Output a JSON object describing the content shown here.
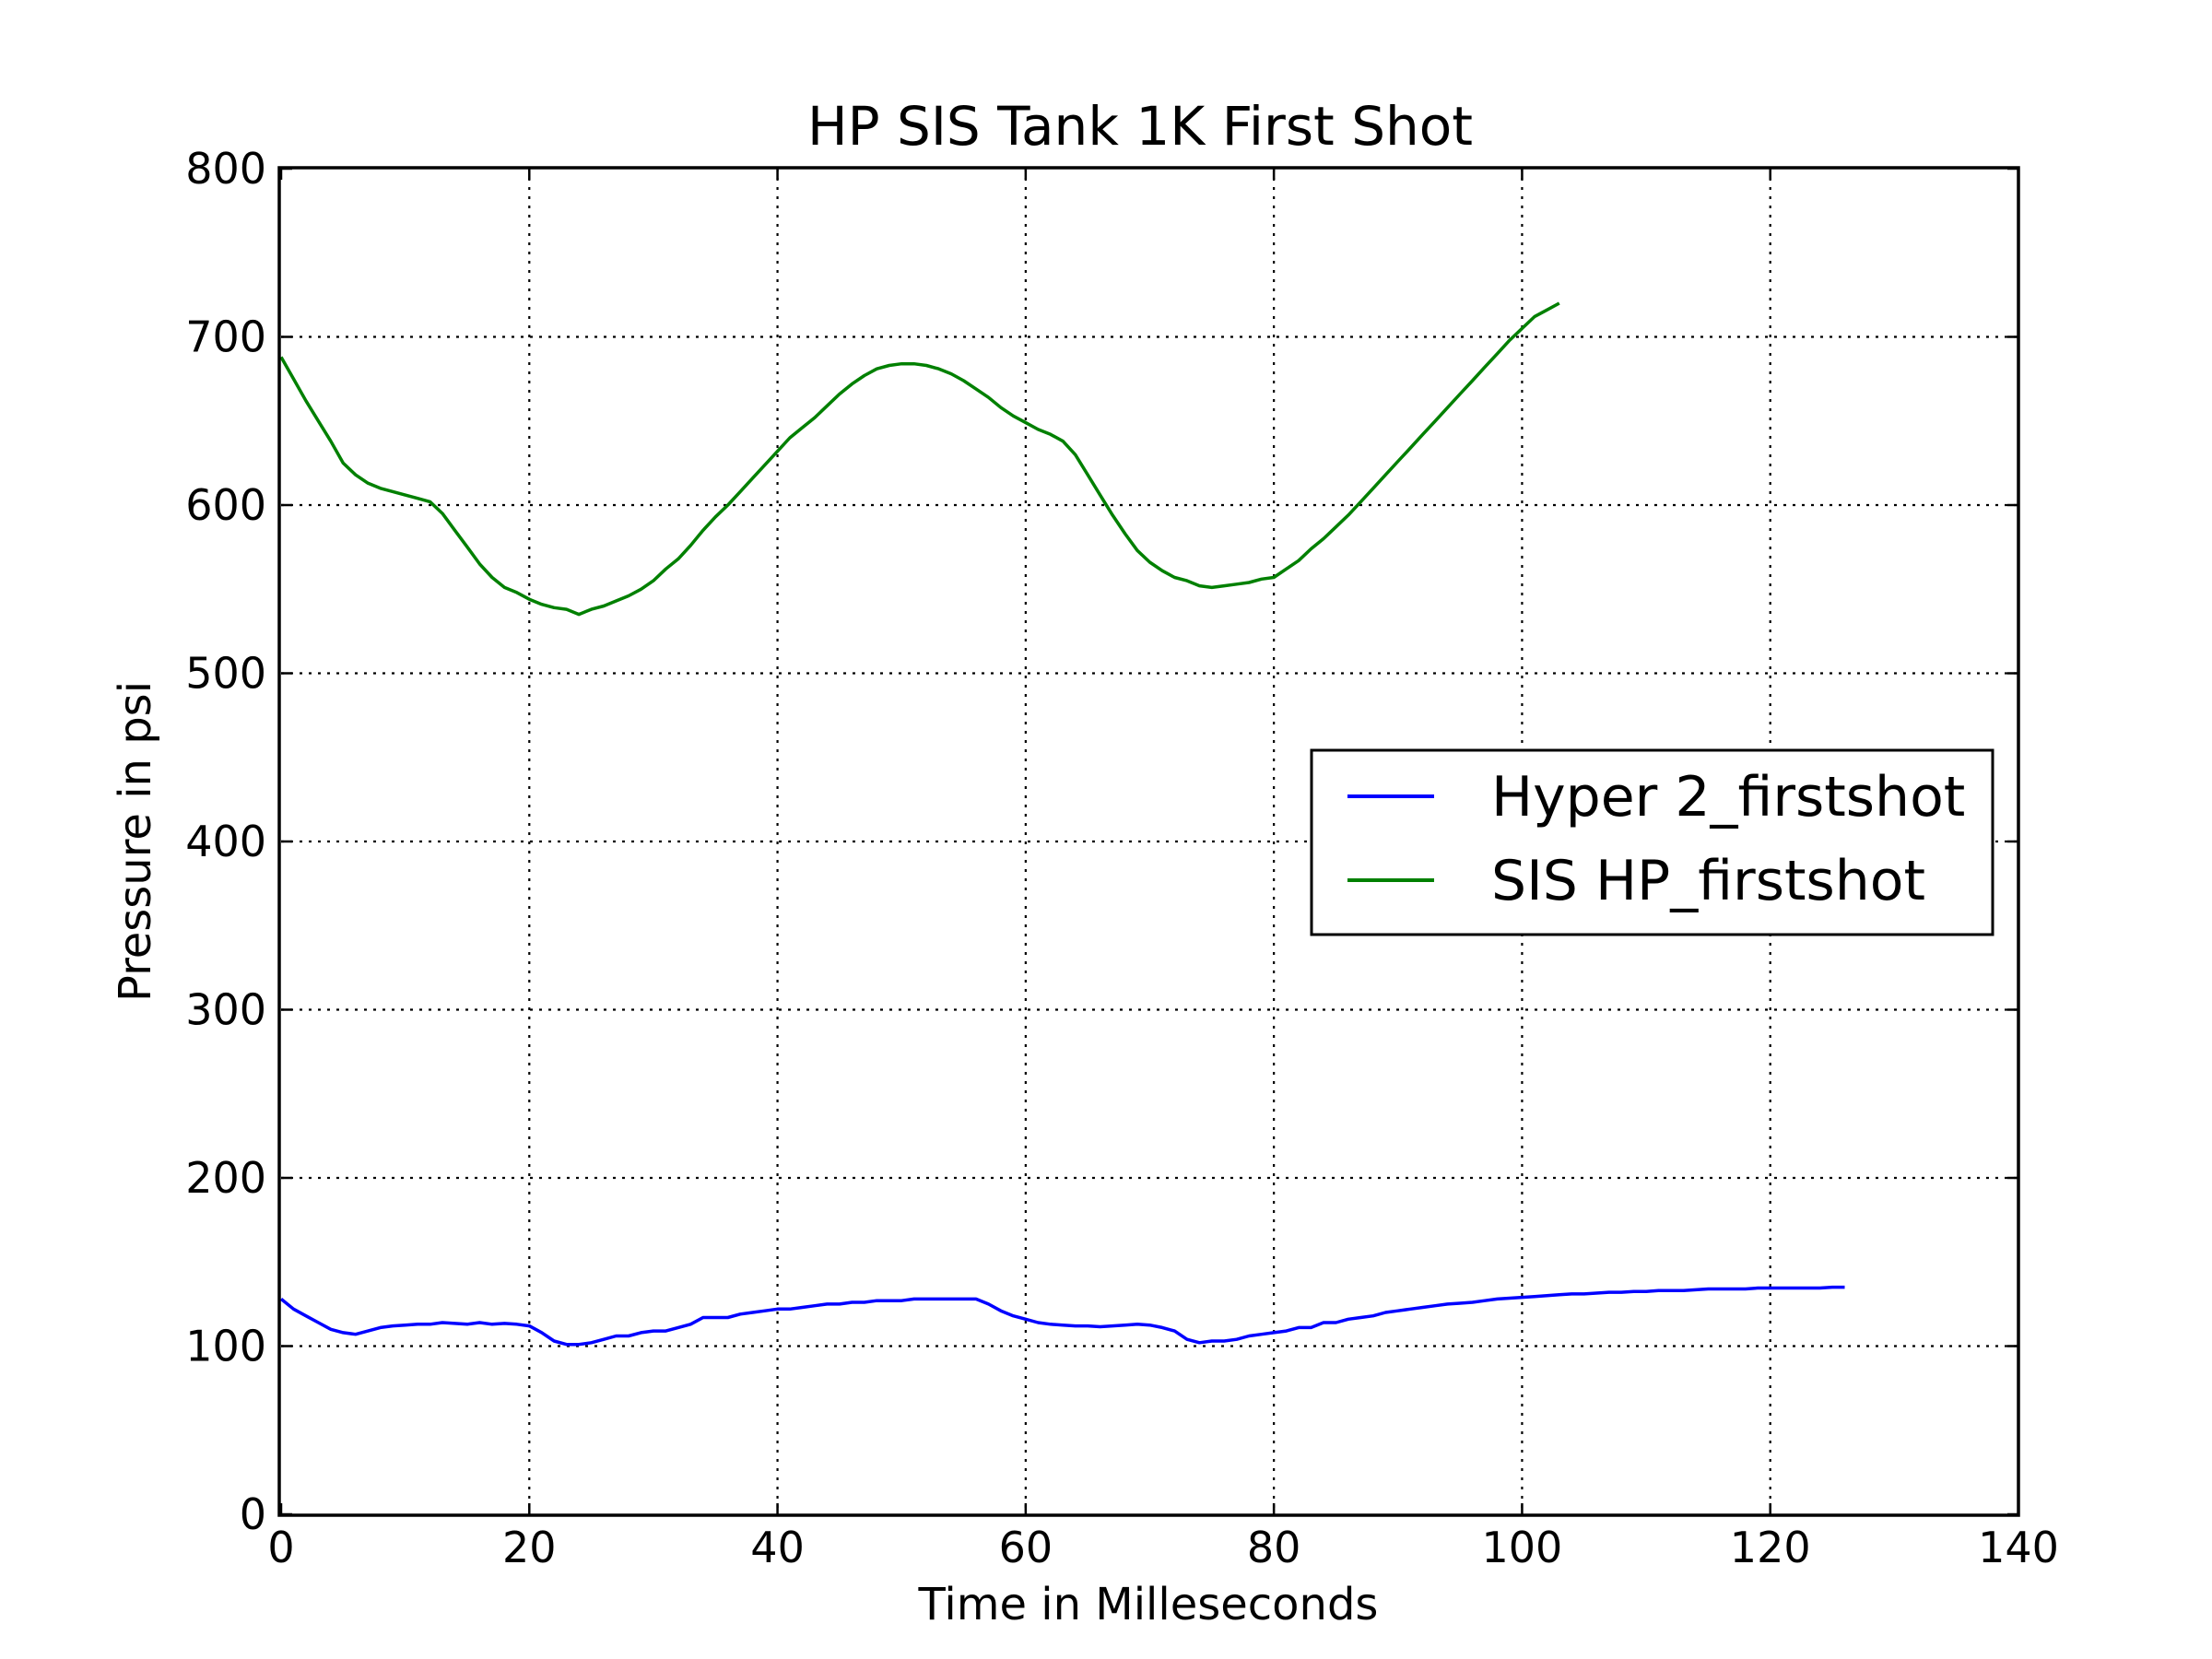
{
  "chart_data": {
    "type": "line",
    "title": "HP SIS Tank 1K First Shot",
    "xlabel": "Time in Milleseconds",
    "ylabel": "Pressure in psi",
    "xlim": [
      0,
      140
    ],
    "ylim": [
      0,
      800
    ],
    "xticks": [
      "0",
      "20",
      "40",
      "60",
      "80",
      "100",
      "120",
      "140"
    ],
    "yticks": [
      "0",
      "100",
      "200",
      "300",
      "400",
      "500",
      "600",
      "700",
      "800"
    ],
    "grid": true,
    "legend_position": "center-right",
    "series": [
      {
        "name": "Hyper 2_firstshot",
        "color": "#0000ff",
        "points": [
          [
            0,
            128
          ],
          [
            1,
            122
          ],
          [
            2,
            118
          ],
          [
            3,
            114
          ],
          [
            4,
            110
          ],
          [
            5,
            108
          ],
          [
            6,
            107
          ],
          [
            7,
            109
          ],
          [
            8,
            111
          ],
          [
            9,
            112
          ],
          [
            10,
            112.5
          ],
          [
            11,
            113
          ],
          [
            12,
            113
          ],
          [
            13,
            114
          ],
          [
            14,
            113.5
          ],
          [
            15,
            113
          ],
          [
            16,
            114
          ],
          [
            17,
            113
          ],
          [
            18,
            113.5
          ],
          [
            19,
            113
          ],
          [
            20,
            112
          ],
          [
            21,
            108
          ],
          [
            22,
            103
          ],
          [
            23,
            101
          ],
          [
            24,
            101
          ],
          [
            25,
            102
          ],
          [
            26,
            104
          ],
          [
            27,
            106
          ],
          [
            28,
            106
          ],
          [
            29,
            108
          ],
          [
            30,
            109
          ],
          [
            31,
            109
          ],
          [
            32,
            111
          ],
          [
            33,
            113
          ],
          [
            34,
            117
          ],
          [
            35,
            117
          ],
          [
            36,
            117
          ],
          [
            37,
            119
          ],
          [
            38,
            120
          ],
          [
            39,
            121
          ],
          [
            40,
            122
          ],
          [
            41,
            122
          ],
          [
            42,
            123
          ],
          [
            43,
            124
          ],
          [
            44,
            125
          ],
          [
            45,
            125
          ],
          [
            46,
            126
          ],
          [
            47,
            126
          ],
          [
            48,
            127
          ],
          [
            49,
            127
          ],
          [
            50,
            127
          ],
          [
            51,
            128
          ],
          [
            52,
            128
          ],
          [
            53,
            128
          ],
          [
            54,
            128
          ],
          [
            55,
            128
          ],
          [
            56,
            128
          ],
          [
            57,
            125
          ],
          [
            58,
            121
          ],
          [
            59,
            118
          ],
          [
            60,
            116
          ],
          [
            61,
            114
          ],
          [
            62,
            113
          ],
          [
            63,
            112.5
          ],
          [
            64,
            112
          ],
          [
            65,
            112
          ],
          [
            66,
            111.5
          ],
          [
            67,
            112
          ],
          [
            68,
            112.5
          ],
          [
            69,
            113
          ],
          [
            70,
            112.5
          ],
          [
            71,
            111
          ],
          [
            72,
            109
          ],
          [
            73,
            104
          ],
          [
            74,
            102
          ],
          [
            75,
            103
          ],
          [
            76,
            103
          ],
          [
            77,
            104
          ],
          [
            78,
            106
          ],
          [
            79,
            107
          ],
          [
            80,
            108
          ],
          [
            81,
            109
          ],
          [
            82,
            111
          ],
          [
            83,
            111
          ],
          [
            84,
            114
          ],
          [
            85,
            114
          ],
          [
            86,
            116
          ],
          [
            87,
            117
          ],
          [
            88,
            118
          ],
          [
            89,
            120
          ],
          [
            90,
            121
          ],
          [
            91,
            122
          ],
          [
            92,
            123
          ],
          [
            93,
            124
          ],
          [
            94,
            125
          ],
          [
            95,
            125.5
          ],
          [
            96,
            126
          ],
          [
            97,
            127
          ],
          [
            98,
            128
          ],
          [
            99,
            128.5
          ],
          [
            100,
            129
          ],
          [
            101,
            129.5
          ],
          [
            102,
            130
          ],
          [
            103,
            130.5
          ],
          [
            104,
            131
          ],
          [
            105,
            131
          ],
          [
            106,
            131.5
          ],
          [
            107,
            132
          ],
          [
            108,
            132
          ],
          [
            109,
            132.5
          ],
          [
            110,
            132.5
          ],
          [
            111,
            133
          ],
          [
            112,
            133
          ],
          [
            113,
            133
          ],
          [
            114,
            133.5
          ],
          [
            115,
            134
          ],
          [
            116,
            134
          ],
          [
            117,
            134
          ],
          [
            118,
            134
          ],
          [
            119,
            134.5
          ],
          [
            120,
            134.5
          ],
          [
            121,
            134.5
          ],
          [
            122,
            134.5
          ],
          [
            123,
            134.5
          ],
          [
            124,
            134.5
          ],
          [
            125,
            135
          ],
          [
            126,
            135
          ]
        ]
      },
      {
        "name": "SIS HP_firstshot",
        "color": "#008000",
        "points": [
          [
            0,
            688
          ],
          [
            1,
            675
          ],
          [
            2,
            662
          ],
          [
            3,
            650
          ],
          [
            4,
            638
          ],
          [
            5,
            625
          ],
          [
            6,
            618
          ],
          [
            7,
            613
          ],
          [
            8,
            610
          ],
          [
            9,
            608
          ],
          [
            10,
            606
          ],
          [
            11,
            604
          ],
          [
            12,
            602
          ],
          [
            13,
            595
          ],
          [
            14,
            585
          ],
          [
            15,
            575
          ],
          [
            16,
            565
          ],
          [
            17,
            557
          ],
          [
            18,
            551
          ],
          [
            19,
            548
          ],
          [
            20,
            544
          ],
          [
            21,
            541
          ],
          [
            22,
            539
          ],
          [
            23,
            538
          ],
          [
            24,
            535
          ],
          [
            25,
            538
          ],
          [
            26,
            540
          ],
          [
            27,
            543
          ],
          [
            28,
            546
          ],
          [
            29,
            550
          ],
          [
            30,
            555
          ],
          [
            31,
            562
          ],
          [
            32,
            568
          ],
          [
            33,
            576
          ],
          [
            34,
            585
          ],
          [
            35,
            593
          ],
          [
            36,
            600
          ],
          [
            37,
            608
          ],
          [
            38,
            616
          ],
          [
            39,
            624
          ],
          [
            40,
            632
          ],
          [
            41,
            640
          ],
          [
            42,
            646
          ],
          [
            43,
            652
          ],
          [
            44,
            659
          ],
          [
            45,
            666
          ],
          [
            46,
            672
          ],
          [
            47,
            677
          ],
          [
            48,
            681
          ],
          [
            49,
            683
          ],
          [
            50,
            684
          ],
          [
            51,
            684
          ],
          [
            52,
            683
          ],
          [
            53,
            681
          ],
          [
            54,
            678
          ],
          [
            55,
            674
          ],
          [
            56,
            669
          ],
          [
            57,
            664
          ],
          [
            58,
            658
          ],
          [
            59,
            653
          ],
          [
            60,
            649
          ],
          [
            61,
            645
          ],
          [
            62,
            642
          ],
          [
            63,
            638
          ],
          [
            64,
            630
          ],
          [
            65,
            618
          ],
          [
            66,
            606
          ],
          [
            67,
            594
          ],
          [
            68,
            583
          ],
          [
            69,
            573
          ],
          [
            70,
            566
          ],
          [
            71,
            561
          ],
          [
            72,
            557
          ],
          [
            73,
            555
          ],
          [
            74,
            552
          ],
          [
            75,
            551
          ],
          [
            76,
            552
          ],
          [
            77,
            553
          ],
          [
            78,
            554
          ],
          [
            79,
            556
          ],
          [
            80,
            557
          ],
          [
            81,
            562
          ],
          [
            82,
            567
          ],
          [
            83,
            574
          ],
          [
            84,
            580
          ],
          [
            85,
            587
          ],
          [
            86,
            594
          ],
          [
            87,
            602
          ],
          [
            88,
            610
          ],
          [
            89,
            618
          ],
          [
            90,
            626
          ],
          [
            91,
            634
          ],
          [
            92,
            642
          ],
          [
            93,
            650
          ],
          [
            94,
            658
          ],
          [
            95,
            666
          ],
          [
            96,
            674
          ],
          [
            97,
            682
          ],
          [
            98,
            690
          ],
          [
            99,
            698
          ],
          [
            100,
            705
          ],
          [
            101,
            712
          ],
          [
            102,
            716
          ],
          [
            103,
            720
          ]
        ]
      }
    ]
  }
}
